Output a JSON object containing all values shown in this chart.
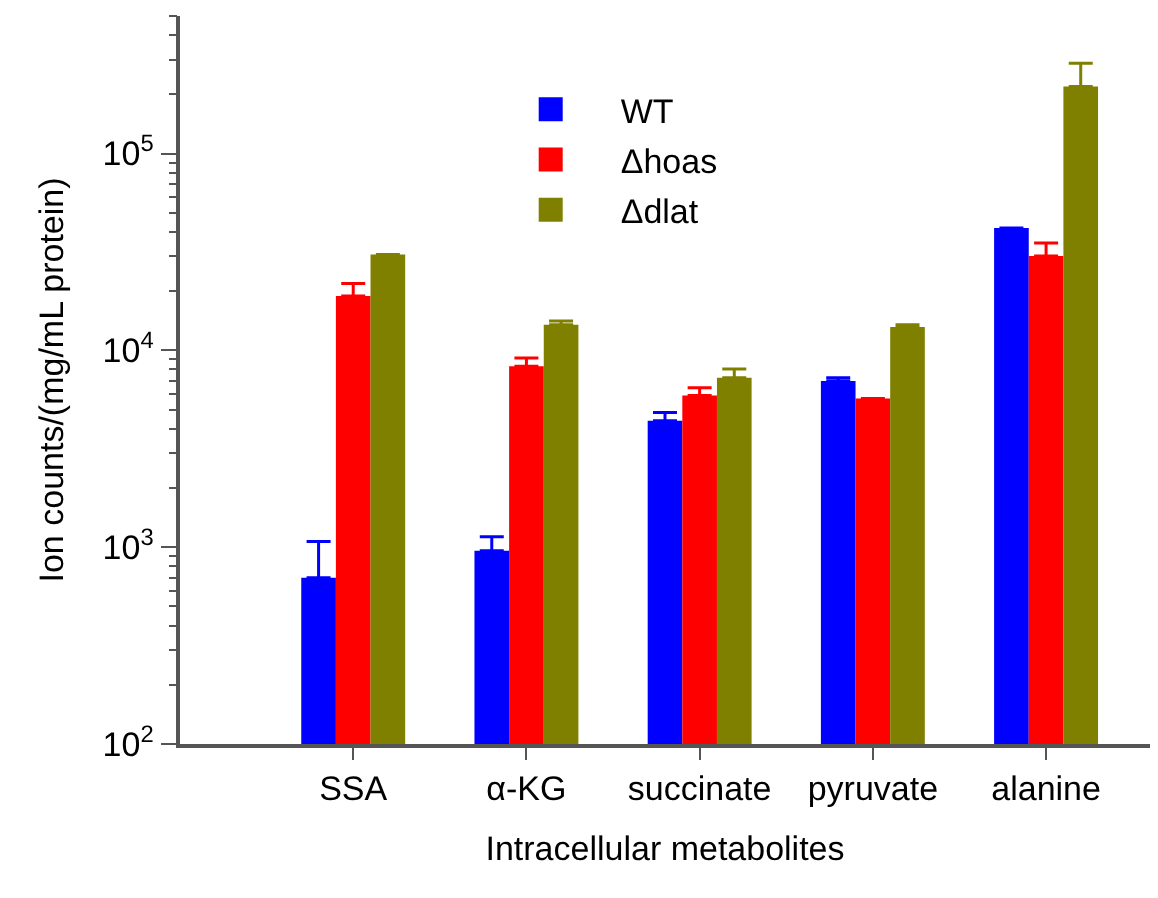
{
  "chart_data": {
    "type": "bar",
    "xlabel": "Intracellular metabolites",
    "ylabel": "Ion counts/(mg/mL protein)",
    "categories": [
      "SSA",
      "α-KG",
      "succinate",
      "pyruvate",
      "alanine"
    ],
    "series": [
      {
        "name": "WT",
        "color": "#0000ff",
        "values": [
          700,
          960,
          4390,
          6990,
          41900
        ],
        "errors": [
          [
            700,
            1070
          ],
          [
            960,
            1130
          ],
          [
            4390,
            4840
          ],
          [
            6990,
            7260
          ],
          null
        ]
      },
      {
        "name": "Δhoas",
        "color": "#ff0000",
        "values": [
          18900,
          8300,
          5890,
          5700,
          30200
        ],
        "errors": [
          [
            18900,
            21900
          ],
          [
            8300,
            9160
          ],
          [
            5890,
            6460
          ],
          null,
          [
            30200,
            35100
          ]
        ]
      },
      {
        "name": "Δdlat",
        "color": "#808000",
        "values": [
          30700,
          13500,
          7260,
          13150,
          219000
        ],
        "errors": [
          null,
          [
            13500,
            14100
          ],
          [
            7260,
            8050
          ],
          [
            13150,
            13500
          ],
          [
            219000,
            288000
          ]
        ]
      }
    ],
    "log": true,
    "ylim": [
      100,
      500000
    ],
    "yticks": [
      {
        "value": 100,
        "label": "10$^{2}$"
      },
      {
        "value": 200,
        "label": null
      },
      {
        "value": 300,
        "label": null
      },
      {
        "value": 400,
        "label": null
      },
      {
        "value": 500,
        "label": null
      },
      {
        "value": 600,
        "label": null
      },
      {
        "value": 700,
        "label": null
      },
      {
        "value": 800,
        "label": null
      },
      {
        "value": 900,
        "label": null
      },
      {
        "value": 1000,
        "label": "10$^{3}$"
      },
      {
        "value": 2000,
        "label": null
      },
      {
        "value": 3000,
        "label": null
      },
      {
        "value": 4000,
        "label": null
      },
      {
        "value": 5000,
        "label": null
      },
      {
        "value": 6000,
        "label": null
      },
      {
        "value": 7000,
        "label": null
      },
      {
        "value": 8000,
        "label": null
      },
      {
        "value": 9000,
        "label": null
      },
      {
        "value": 10000,
        "label": "10$^{4}$"
      },
      {
        "value": 20000,
        "label": null
      },
      {
        "value": 30000,
        "label": null
      },
      {
        "value": 40000,
        "label": null
      },
      {
        "value": 50000,
        "label": null
      },
      {
        "value": 60000,
        "label": null
      },
      {
        "value": 70000,
        "label": null
      },
      {
        "value": 80000,
        "label": null
      },
      {
        "value": 90000,
        "label": null
      },
      {
        "value": 100000,
        "label": "10$^{5}$"
      },
      {
        "value": 200000,
        "label": null
      },
      {
        "value": 300000,
        "label": null
      },
      {
        "value": 400000,
        "label": null
      },
      {
        "value": 500000,
        "label": null
      }
    ],
    "legend": "top"
  }
}
